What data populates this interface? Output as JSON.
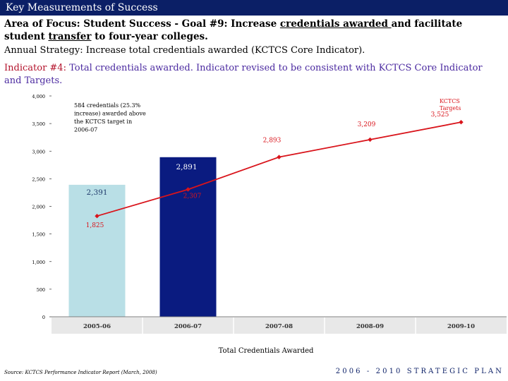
{
  "header": {
    "title": "Key Measurements of Success"
  },
  "goal": {
    "prefix": "Area of Focus: Student Success - Goal #9:  Increase ",
    "underlined_1": "credentials awarded ",
    "middle": "and facilitate student ",
    "underlined_2": "transfer",
    "suffix": " to four-year colleges."
  },
  "strategy": "Annual Strategy:  Increase total credentials awarded (KCTCS Core Indicator).",
  "indicator": {
    "label": "Indicator #4:",
    "text": "  Total credentials awarded. Indicator revised to be consistent with KCTCS Core Indicator and Targets."
  },
  "chart_data": {
    "type": "bar",
    "categories": [
      "2005-06",
      "2006-07",
      "2007-08",
      "2008-09",
      "2009-10"
    ],
    "ylim": [
      0,
      4000
    ],
    "yticks": [
      "0",
      "500",
      "1,000",
      "1,500",
      "2,000",
      "2,500",
      "3,000",
      "3,500",
      "4,000"
    ],
    "xlabel": "Total Credentials Awarded",
    "bars": {
      "values": [
        2391,
        2891
      ],
      "labels": [
        "2,391",
        "2,891"
      ],
      "colors": [
        "#b9dfe6",
        "#0a1b80"
      ]
    },
    "line": {
      "name": "KCTCS Targets",
      "name_lines": [
        "KCTCS",
        "Targets"
      ],
      "values": [
        1825,
        2307,
        2893,
        3209,
        3525
      ],
      "labels": [
        "1,825",
        "2,307",
        "2,893",
        "3,209",
        "3,525"
      ],
      "color": "#d9141b"
    },
    "annotation": {
      "lines": [
        "584 credentials (25.3%",
        "increase) awarded above",
        "the KCTCS target in",
        "2006-07"
      ]
    }
  },
  "footer": {
    "source": "Source:  KCTCS Performance Indicator Report (March, 2008)",
    "plan": "2006 - 2010 STRATEGIC PLAN"
  }
}
